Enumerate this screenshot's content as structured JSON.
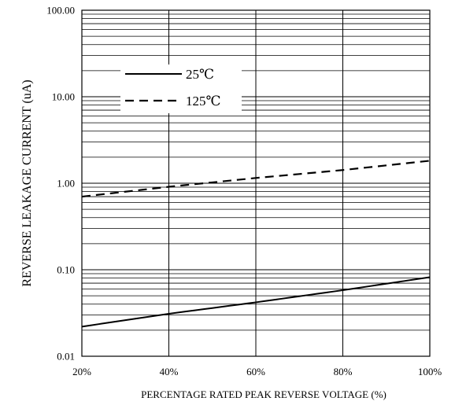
{
  "chart_data": {
    "type": "line",
    "title": "",
    "xlabel": "PERCENTAGE RATED PEAK REVERSE VOLTAGE (%)",
    "ylabel": "REVERSE LEAKAGE CURRENT (uA)",
    "x_scale": "linear",
    "y_scale": "log",
    "xlim": [
      20,
      100
    ],
    "ylim": [
      0.01,
      100
    ],
    "x_ticks": [
      20,
      40,
      60,
      80,
      100
    ],
    "x_tick_labels": [
      "20%",
      "40%",
      "60%",
      "80%",
      "100%"
    ],
    "y_ticks": [
      0.01,
      0.1,
      1,
      10,
      100
    ],
    "y_tick_labels": [
      "0.01",
      "0.10",
      "1.00",
      "10.00",
      "100.00"
    ],
    "grid": true,
    "legend_position": "upper-left",
    "series": [
      {
        "name": "25℃",
        "style": "solid",
        "color": "#000000",
        "x": [
          20,
          40,
          60,
          80,
          100
        ],
        "y": [
          0.022,
          0.031,
          0.042,
          0.058,
          0.082
        ]
      },
      {
        "name": "125℃",
        "style": "dashed",
        "color": "#000000",
        "x": [
          20,
          40,
          60,
          80,
          100
        ],
        "y": [
          0.7,
          0.91,
          1.15,
          1.42,
          1.82
        ]
      }
    ]
  }
}
